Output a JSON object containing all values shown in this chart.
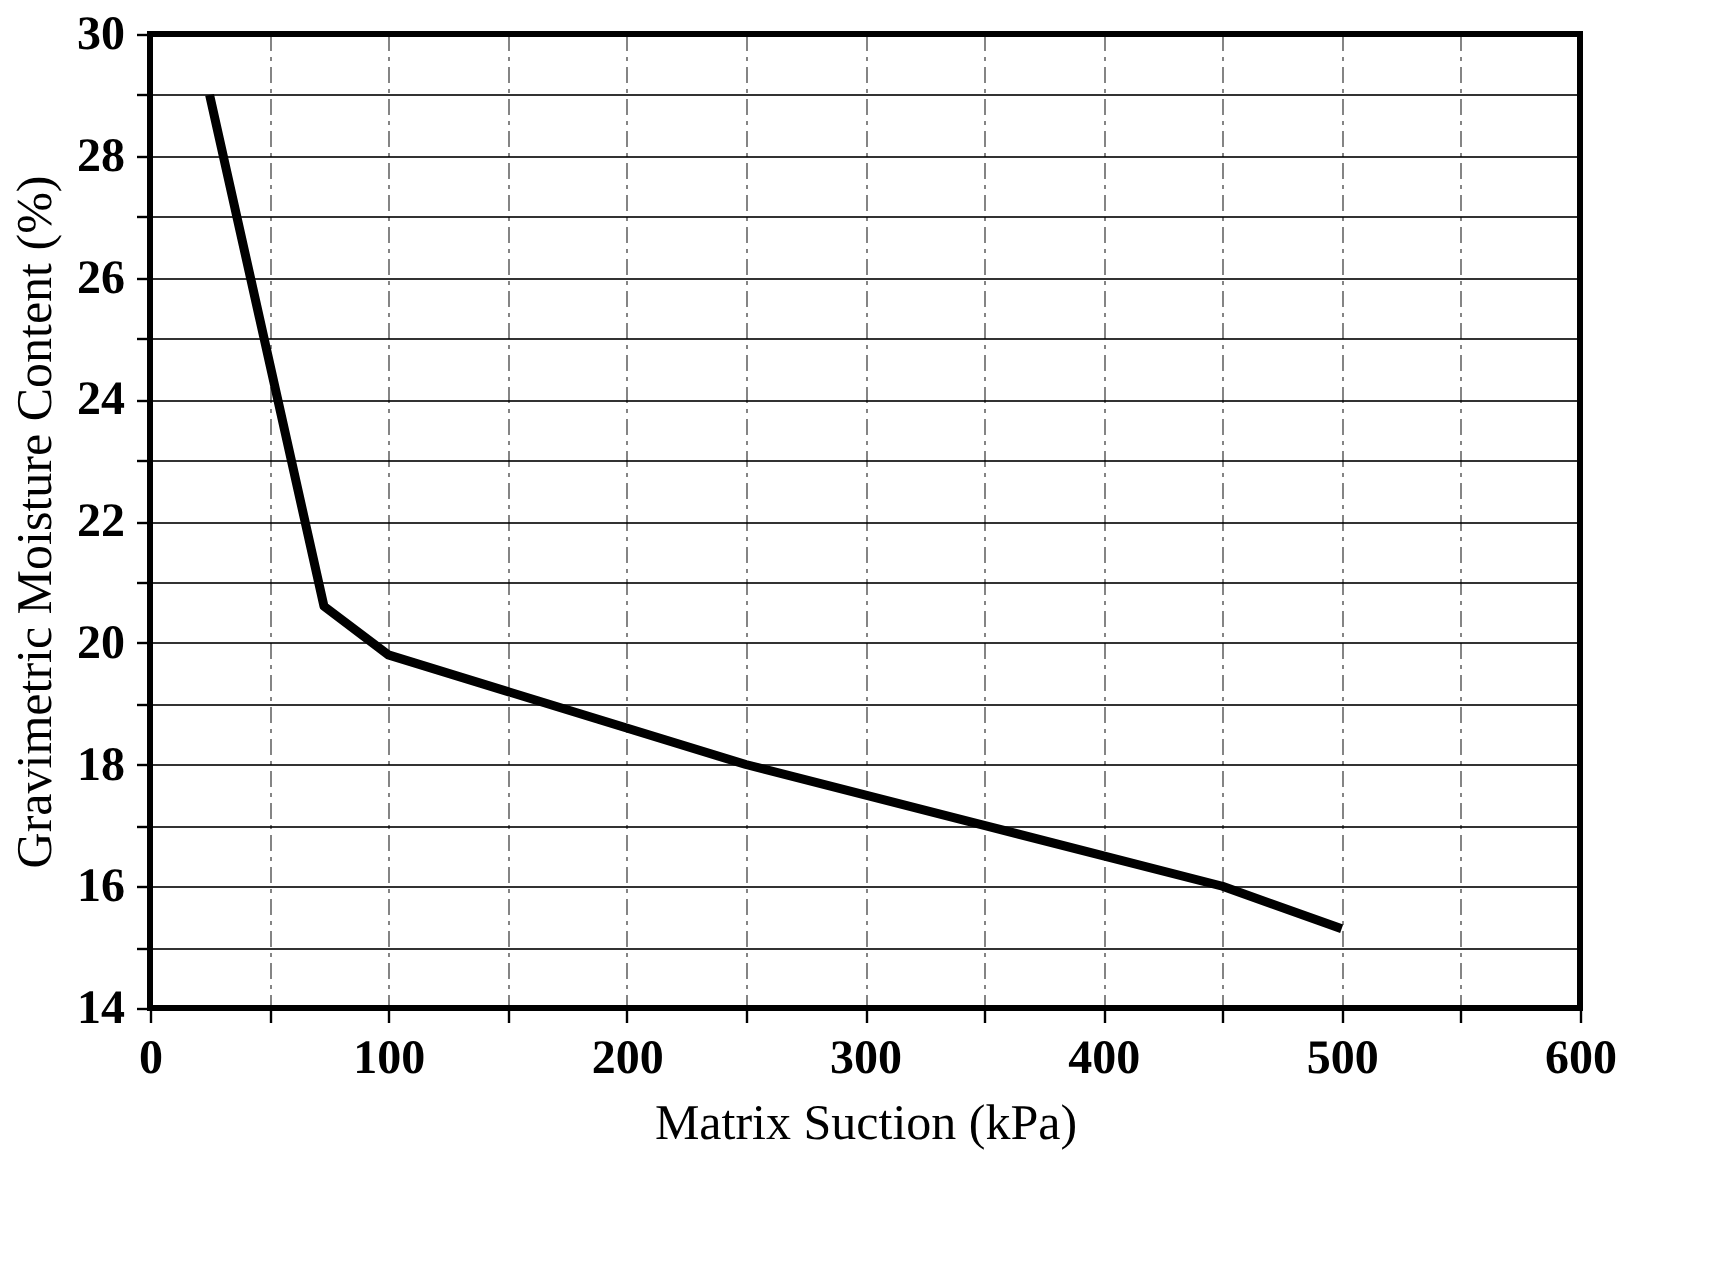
{
  "chart_data": {
    "type": "line",
    "xlabel": "Matrix Suction (kPa)",
    "ylabel": "Gravimetric Moisture Content (%)",
    "x": [
      25,
      73,
      100,
      200,
      250,
      350,
      450,
      500
    ],
    "series": [
      {
        "color": "#000000",
        "values": [
          29.0,
          20.6,
          19.8,
          18.6,
          18.0,
          17.0,
          16.0,
          15.3
        ]
      }
    ],
    "xlim": [
      0,
      600
    ],
    "ylim": [
      14,
      30
    ],
    "xticks": [
      0,
      {
        "value": 50,
        "label": null
      },
      100,
      {
        "value": 150,
        "label": null
      },
      200,
      {
        "value": 250,
        "label": null
      },
      300,
      {
        "value": 350,
        "label": null
      },
      400,
      {
        "value": 450,
        "label": null
      },
      500,
      {
        "value": 550,
        "label": null
      },
      600
    ],
    "yticks": [
      14,
      {
        "value": 15,
        "label": null
      },
      16,
      {
        "value": 17,
        "label": null
      },
      18,
      {
        "value": 19,
        "label": null
      },
      20,
      {
        "value": 21,
        "label": null
      },
      22,
      {
        "value": 23,
        "label": null
      },
      24,
      {
        "value": 25,
        "label": null
      },
      26,
      {
        "value": 27,
        "label": null
      },
      28,
      {
        "value": 29,
        "label": null
      },
      30
    ],
    "grid": true,
    "marker": "none",
    "line_style": "solid"
  }
}
